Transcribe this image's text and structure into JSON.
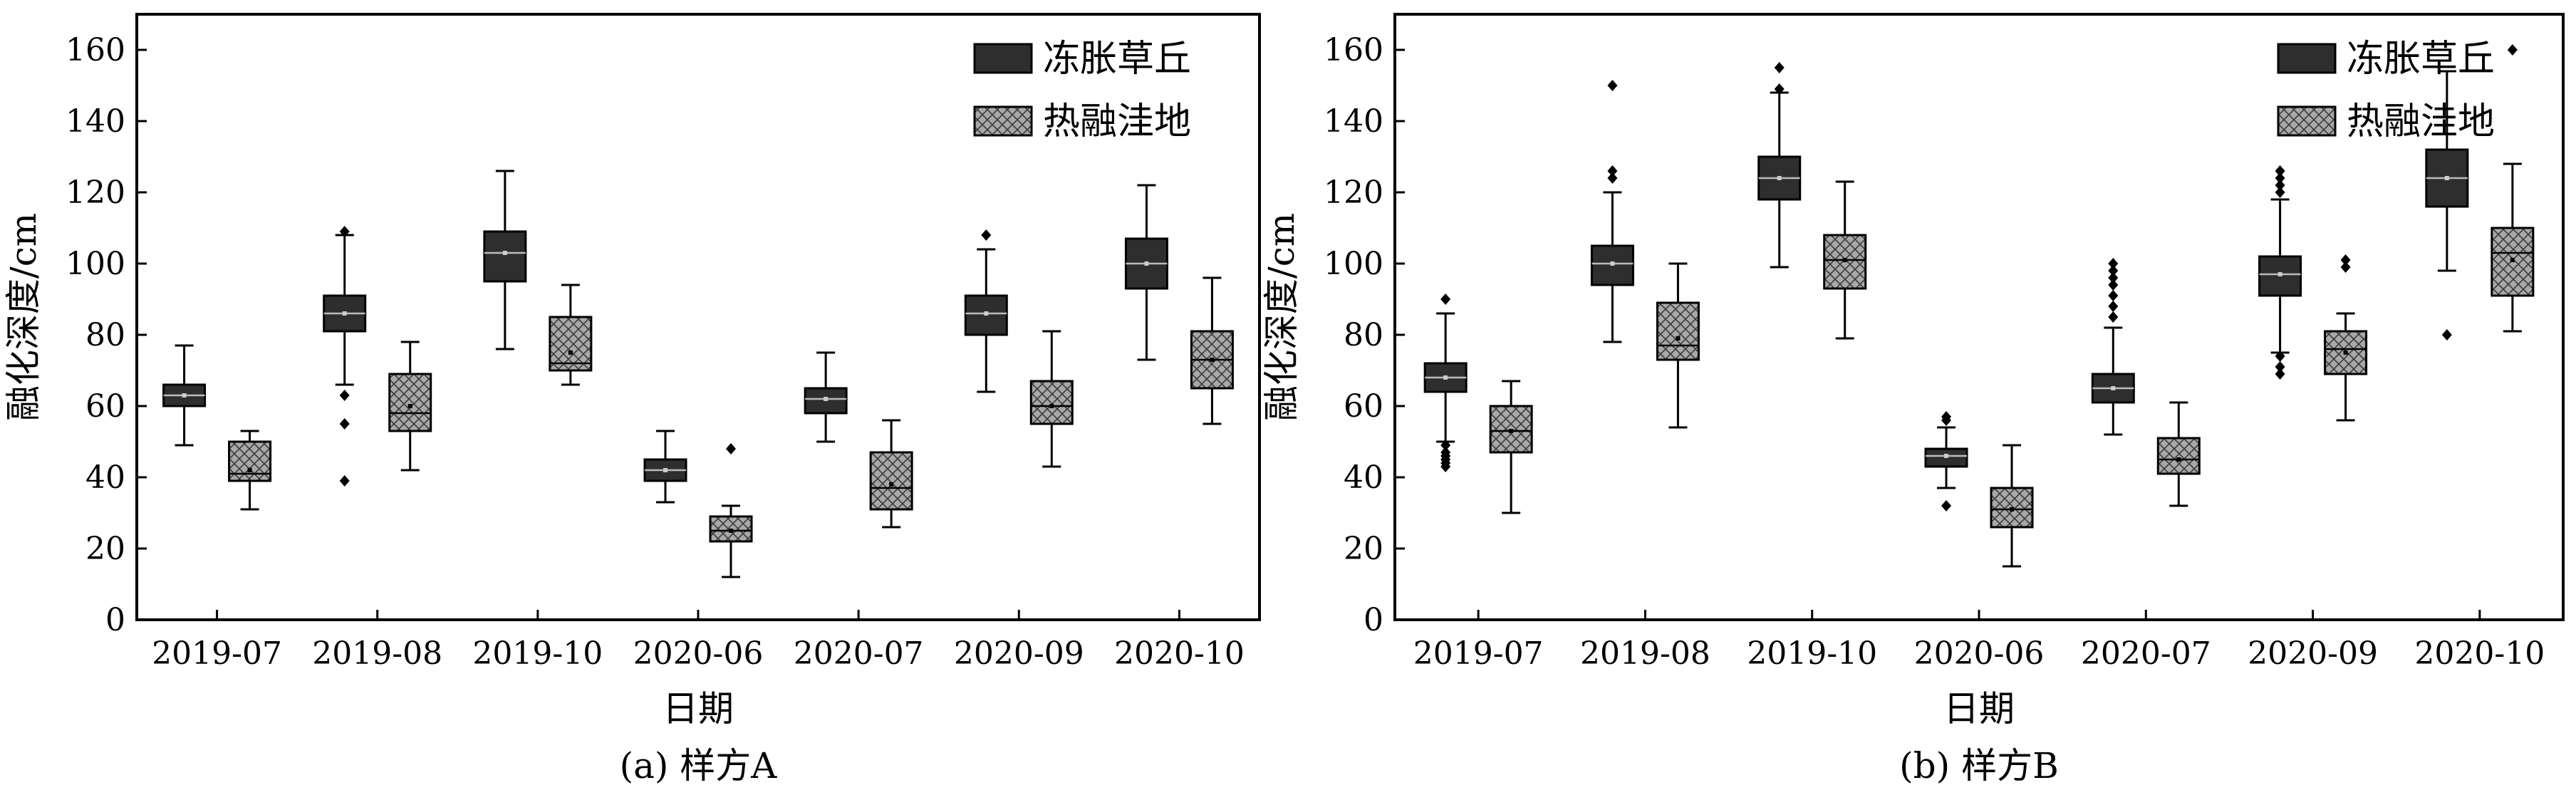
{
  "colors": {
    "frozen_hummock": "#2e2e2e",
    "thaw_depression": "#a8a8a8",
    "axis": "#000000"
  },
  "chart_data": [
    {
      "type": "box",
      "caption": "(a) 样方A",
      "xlabel": "日期",
      "ylabel": "融化深度/cm",
      "ylim": [
        0,
        170
      ],
      "yticks": [
        0,
        20,
        40,
        60,
        80,
        100,
        120,
        140,
        160
      ],
      "categories": [
        "2019-07",
        "2019-08",
        "2019-10",
        "2020-06",
        "2020-07",
        "2020-09",
        "2020-10"
      ],
      "legend": {
        "position": "top-right"
      },
      "series": [
        {
          "name": "冻胀草丘",
          "pattern": "solid",
          "boxes": [
            {
              "min": 49,
              "q1": 60,
              "median": 63,
              "mean": 63,
              "q3": 66,
              "max": 77,
              "outliers": []
            },
            {
              "min": 66,
              "q1": 81,
              "median": 86,
              "mean": 86,
              "q3": 91,
              "max": 108,
              "outliers": [
                109,
                63,
                55,
                39
              ]
            },
            {
              "min": 76,
              "q1": 95,
              "median": 103,
              "mean": 103,
              "q3": 109,
              "max": 126,
              "outliers": []
            },
            {
              "min": 33,
              "q1": 39,
              "median": 42,
              "mean": 42,
              "q3": 45,
              "max": 53,
              "outliers": []
            },
            {
              "min": 50,
              "q1": 58,
              "median": 62,
              "mean": 62,
              "q3": 65,
              "max": 75,
              "outliers": []
            },
            {
              "min": 64,
              "q1": 80,
              "median": 86,
              "mean": 86,
              "q3": 91,
              "max": 104,
              "outliers": [
                108
              ]
            },
            {
              "min": 73,
              "q1": 93,
              "median": 100,
              "mean": 100,
              "q3": 107,
              "max": 122,
              "outliers": []
            }
          ]
        },
        {
          "name": "热融洼地",
          "pattern": "crosshatch",
          "boxes": [
            {
              "min": 31,
              "q1": 39,
              "median": 41,
              "mean": 42,
              "q3": 50,
              "max": 53,
              "outliers": []
            },
            {
              "min": 42,
              "q1": 53,
              "median": 58,
              "mean": 60,
              "q3": 69,
              "max": 78,
              "outliers": []
            },
            {
              "min": 66,
              "q1": 70,
              "median": 72,
              "mean": 75,
              "q3": 85,
              "max": 94,
              "outliers": []
            },
            {
              "min": 12,
              "q1": 22,
              "median": 25,
              "mean": 25,
              "q3": 29,
              "max": 32,
              "outliers": [
                48
              ]
            },
            {
              "min": 26,
              "q1": 31,
              "median": 37,
              "mean": 38,
              "q3": 47,
              "max": 56,
              "outliers": []
            },
            {
              "min": 43,
              "q1": 55,
              "median": 60,
              "mean": 60,
              "q3": 67,
              "max": 81,
              "outliers": []
            },
            {
              "min": 55,
              "q1": 65,
              "median": 73,
              "mean": 73,
              "q3": 81,
              "max": 96,
              "outliers": []
            }
          ]
        }
      ]
    },
    {
      "type": "box",
      "caption": "(b) 样方B",
      "xlabel": "日期",
      "ylabel": "融化深度/cm",
      "ylim": [
        0,
        170
      ],
      "yticks": [
        0,
        20,
        40,
        60,
        80,
        100,
        120,
        140,
        160
      ],
      "categories": [
        "2019-07",
        "2019-08",
        "2019-10",
        "2020-06",
        "2020-07",
        "2020-09",
        "2020-10"
      ],
      "legend": {
        "position": "top-right"
      },
      "series": [
        {
          "name": "冻胀草丘",
          "pattern": "solid",
          "boxes": [
            {
              "min": 50,
              "q1": 64,
              "median": 68,
              "mean": 68,
              "q3": 72,
              "max": 86,
              "outliers": [
                90,
                49,
                47,
                46,
                45,
                44,
                43
              ]
            },
            {
              "min": 78,
              "q1": 94,
              "median": 100,
              "mean": 100,
              "q3": 105,
              "max": 120,
              "outliers": [
                150,
                126,
                124
              ]
            },
            {
              "min": 99,
              "q1": 118,
              "median": 124,
              "mean": 124,
              "q3": 130,
              "max": 148,
              "outliers": [
                155,
                149
              ]
            },
            {
              "min": 37,
              "q1": 43,
              "median": 46,
              "mean": 46,
              "q3": 48,
              "max": 54,
              "outliers": [
                57,
                56,
                32
              ]
            },
            {
              "min": 52,
              "q1": 61,
              "median": 65,
              "mean": 65,
              "q3": 69,
              "max": 82,
              "outliers": [
                100,
                98,
                96,
                94,
                91,
                88,
                85
              ]
            },
            {
              "min": 75,
              "q1": 91,
              "median": 97,
              "mean": 97,
              "q3": 102,
              "max": 118,
              "outliers": [
                126,
                124,
                122,
                120,
                74,
                71,
                69
              ]
            },
            {
              "min": 98,
              "q1": 116,
              "median": 124,
              "mean": 124,
              "q3": 132,
              "max": 154,
              "outliers": [
                80
              ]
            }
          ]
        },
        {
          "name": "热融洼地",
          "pattern": "crosshatch",
          "boxes": [
            {
              "min": 30,
              "q1": 47,
              "median": 53,
              "mean": 53,
              "q3": 60,
              "max": 67,
              "outliers": []
            },
            {
              "min": 54,
              "q1": 73,
              "median": 77,
              "mean": 79,
              "q3": 89,
              "max": 100,
              "outliers": []
            },
            {
              "min": 79,
              "q1": 93,
              "median": 101,
              "mean": 101,
              "q3": 108,
              "max": 123,
              "outliers": []
            },
            {
              "min": 15,
              "q1": 26,
              "median": 31,
              "mean": 31,
              "q3": 37,
              "max": 49,
              "outliers": []
            },
            {
              "min": 32,
              "q1": 41,
              "median": 45,
              "mean": 45,
              "q3": 51,
              "max": 61,
              "outliers": []
            },
            {
              "min": 56,
              "q1": 69,
              "median": 76,
              "mean": 75,
              "q3": 81,
              "max": 86,
              "outliers": [
                101,
                99
              ]
            },
            {
              "min": 81,
              "q1": 91,
              "median": 103,
              "mean": 101,
              "q3": 110,
              "max": 128,
              "outliers": [
                160
              ]
            }
          ]
        }
      ]
    }
  ]
}
